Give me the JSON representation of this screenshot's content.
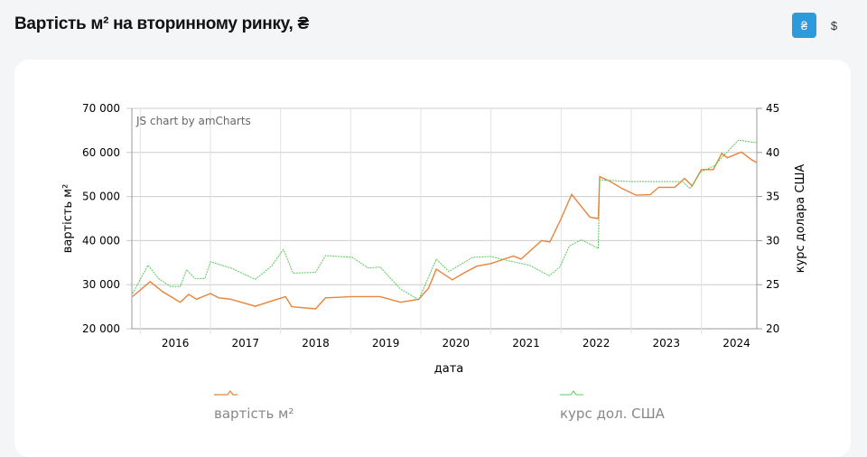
{
  "header": {
    "title": "Вартість м² на вторинному ринку, ₴",
    "currency_uah": "₴",
    "currency_usd": "$"
  },
  "colors": {
    "price": "#e8843a",
    "usd": "#5cc85c",
    "accent": "#2d9bdb"
  },
  "chart_data": {
    "type": "line",
    "credit": "JS chart by amCharts",
    "xlabel": "дата",
    "ylabel": "вартість м²",
    "y2label": "курс долара США",
    "xlim": [
      2015.88,
      2024.79
    ],
    "ylim": [
      20000,
      70000
    ],
    "y2lim": [
      20,
      45
    ],
    "x_ticks": [
      "2016",
      "2017",
      "2018",
      "2019",
      "2020",
      "2021",
      "2022",
      "2023",
      "2024"
    ],
    "y_ticks": [
      "20 000",
      "30 000",
      "40 000",
      "50 000",
      "60 000",
      "70 000"
    ],
    "y2_ticks": [
      "20",
      "25",
      "30",
      "35",
      "40",
      "45"
    ],
    "series": [
      {
        "name": "вартість м²",
        "axis": "left",
        "points": [
          [
            2015.89,
            27300
          ],
          [
            2016.14,
            30700
          ],
          [
            2016.32,
            28400
          ],
          [
            2016.57,
            26000
          ],
          [
            2016.69,
            27800
          ],
          [
            2016.8,
            26700
          ],
          [
            2017.0,
            28000
          ],
          [
            2017.12,
            27000
          ],
          [
            2017.29,
            26700
          ],
          [
            2017.64,
            25100
          ],
          [
            2017.87,
            26300
          ],
          [
            2018.07,
            27300
          ],
          [
            2018.16,
            25000
          ],
          [
            2018.5,
            24500
          ],
          [
            2018.64,
            27000
          ],
          [
            2019.02,
            27300
          ],
          [
            2019.42,
            27300
          ],
          [
            2019.71,
            26000
          ],
          [
            2019.97,
            26700
          ],
          [
            2020.11,
            29200
          ],
          [
            2020.22,
            33500
          ],
          [
            2020.45,
            31100
          ],
          [
            2020.63,
            32800
          ],
          [
            2020.8,
            34200
          ],
          [
            2021.0,
            34800
          ],
          [
            2021.32,
            36500
          ],
          [
            2021.43,
            35800
          ],
          [
            2021.72,
            40000
          ],
          [
            2021.84,
            39700
          ],
          [
            2022.0,
            45000
          ],
          [
            2022.15,
            50500
          ],
          [
            2022.29,
            47700
          ],
          [
            2022.41,
            45300
          ],
          [
            2022.53,
            45000
          ],
          [
            2022.55,
            54500
          ],
          [
            2022.69,
            53500
          ],
          [
            2022.87,
            51800
          ],
          [
            2023.07,
            50300
          ],
          [
            2023.27,
            50400
          ],
          [
            2023.39,
            52100
          ],
          [
            2023.62,
            52100
          ],
          [
            2023.76,
            54100
          ],
          [
            2023.87,
            52400
          ],
          [
            2024.0,
            56100
          ],
          [
            2024.17,
            56100
          ],
          [
            2024.29,
            59800
          ],
          [
            2024.37,
            58800
          ],
          [
            2024.57,
            60100
          ],
          [
            2024.71,
            58400
          ],
          [
            2024.79,
            57700
          ]
        ]
      },
      {
        "name": "курс дол. США",
        "axis": "right",
        "points": [
          [
            2015.89,
            24.0
          ],
          [
            2016.11,
            27.2
          ],
          [
            2016.26,
            25.7
          ],
          [
            2016.43,
            24.8
          ],
          [
            2016.57,
            24.8
          ],
          [
            2016.66,
            26.7
          ],
          [
            2016.78,
            25.7
          ],
          [
            2016.92,
            25.7
          ],
          [
            2017.0,
            27.6
          ],
          [
            2017.29,
            26.9
          ],
          [
            2017.64,
            25.6
          ],
          [
            2017.87,
            27.1
          ],
          [
            2018.04,
            29.0
          ],
          [
            2018.18,
            26.3
          ],
          [
            2018.5,
            26.4
          ],
          [
            2018.64,
            28.3
          ],
          [
            2019.02,
            28.1
          ],
          [
            2019.25,
            26.9
          ],
          [
            2019.42,
            27.0
          ],
          [
            2019.71,
            24.5
          ],
          [
            2019.97,
            23.3
          ],
          [
            2020.22,
            27.9
          ],
          [
            2020.4,
            26.5
          ],
          [
            2020.74,
            28.1
          ],
          [
            2021.0,
            28.2
          ],
          [
            2021.2,
            27.8
          ],
          [
            2021.55,
            27.2
          ],
          [
            2021.83,
            26.0
          ],
          [
            2021.98,
            27.0
          ],
          [
            2022.12,
            29.4
          ],
          [
            2022.29,
            30.1
          ],
          [
            2022.53,
            29.1
          ],
          [
            2022.55,
            36.9
          ],
          [
            2022.98,
            36.7
          ],
          [
            2023.73,
            36.7
          ],
          [
            2023.84,
            35.9
          ],
          [
            2023.99,
            37.8
          ],
          [
            2024.19,
            38.5
          ],
          [
            2024.3,
            39.5
          ],
          [
            2024.53,
            41.4
          ],
          [
            2024.79,
            41.1
          ]
        ]
      }
    ]
  }
}
